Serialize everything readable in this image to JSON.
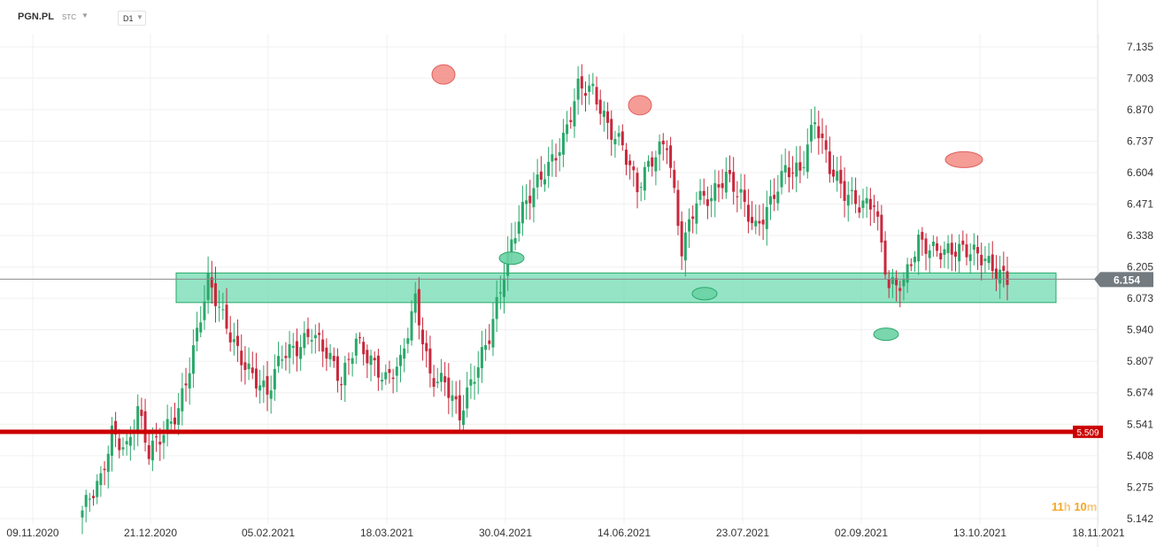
{
  "toolbar": {
    "symbol": "PGN.PL",
    "instrument_type": "STC",
    "interval": "D1"
  },
  "countdown": {
    "hours": "11",
    "hours_unit": "h",
    "minutes": "10",
    "minutes_unit": "m"
  },
  "colors": {
    "up": "#2aa86a",
    "down": "#c9283c",
    "zone": "#66d9ad",
    "support_line": "#cc0000",
    "price_tag": "#737a80",
    "peak_marker": "#f28b82",
    "trough_marker": "#6ad1a4"
  },
  "chart_data": {
    "type": "candlestick",
    "symbol": "PGN.PL",
    "interval": "D1",
    "y_ticks": [
      "7.135",
      "7.003",
      "6.870",
      "6.737",
      "6.604",
      "6.471",
      "6.338",
      "6.205",
      "6.073",
      "5.940",
      "5.807",
      "5.674",
      "5.541",
      "5.408",
      "5.275",
      "5.142"
    ],
    "x_ticks": [
      "09.11.2020",
      "21.12.2020",
      "05.02.2021",
      "18.03.2021",
      "30.04.2021",
      "14.06.2021",
      "23.07.2021",
      "02.09.2021",
      "13.10.2021",
      "18.11.2021"
    ],
    "ylim": [
      5.142,
      7.135
    ],
    "grid": true,
    "current_price": {
      "value": 6.154,
      "label": "6.154"
    },
    "support_line": {
      "value": 5.509,
      "label": "5.509"
    },
    "support_zone": {
      "from": 6.055,
      "to": 6.18,
      "start_date": "21.12.2020",
      "end_date": "15.11.2021"
    },
    "peaks": [
      {
        "date": "12.04.2021",
        "price": 7.0
      },
      {
        "date": "18.06.2021",
        "price": 6.87
      },
      {
        "date": "27.09.2021",
        "price": 6.64
      }
    ],
    "troughs": [
      {
        "date": "03.05.2021",
        "price": 6.25
      },
      {
        "date": "26.07.2021",
        "price": 6.1
      },
      {
        "date": "07.09.2021",
        "price": 5.94
      }
    ],
    "candle_count": 251,
    "close_anchors": [
      {
        "i": 0,
        "c": 5.16
      },
      {
        "i": 5,
        "c": 5.3
      },
      {
        "i": 8,
        "c": 5.52
      },
      {
        "i": 12,
        "c": 5.45
      },
      {
        "i": 15,
        "c": 5.6
      },
      {
        "i": 18,
        "c": 5.4
      },
      {
        "i": 22,
        "c": 5.5
      },
      {
        "i": 26,
        "c": 5.62
      },
      {
        "i": 30,
        "c": 5.86
      },
      {
        "i": 34,
        "c": 6.13
      },
      {
        "i": 38,
        "c": 5.98
      },
      {
        "i": 42,
        "c": 5.86
      },
      {
        "i": 46,
        "c": 5.76
      },
      {
        "i": 50,
        "c": 5.66
      },
      {
        "i": 54,
        "c": 5.82
      },
      {
        "i": 58,
        "c": 5.87
      },
      {
        "i": 62,
        "c": 5.95
      },
      {
        "i": 66,
        "c": 5.84
      },
      {
        "i": 70,
        "c": 5.7
      },
      {
        "i": 74,
        "c": 5.9
      },
      {
        "i": 78,
        "c": 5.83
      },
      {
        "i": 82,
        "c": 5.73
      },
      {
        "i": 86,
        "c": 5.78
      },
      {
        "i": 90,
        "c": 6.06
      },
      {
        "i": 94,
        "c": 5.76
      },
      {
        "i": 98,
        "c": 5.73
      },
      {
        "i": 102,
        "c": 5.56
      },
      {
        "i": 106,
        "c": 5.74
      },
      {
        "i": 110,
        "c": 5.93
      },
      {
        "i": 114,
        "c": 6.2
      },
      {
        "i": 118,
        "c": 6.4
      },
      {
        "i": 122,
        "c": 6.52
      },
      {
        "i": 126,
        "c": 6.64
      },
      {
        "i": 130,
        "c": 6.76
      },
      {
        "i": 134,
        "c": 6.96
      },
      {
        "i": 138,
        "c": 6.93
      },
      {
        "i": 142,
        "c": 6.8
      },
      {
        "i": 146,
        "c": 6.74
      },
      {
        "i": 150,
        "c": 6.54
      },
      {
        "i": 154,
        "c": 6.64
      },
      {
        "i": 158,
        "c": 6.73
      },
      {
        "i": 162,
        "c": 6.3
      },
      {
        "i": 166,
        "c": 6.5
      },
      {
        "i": 170,
        "c": 6.48
      },
      {
        "i": 174,
        "c": 6.58
      },
      {
        "i": 178,
        "c": 6.52
      },
      {
        "i": 182,
        "c": 6.38
      },
      {
        "i": 186,
        "c": 6.46
      },
      {
        "i": 190,
        "c": 6.6
      },
      {
        "i": 194,
        "c": 6.62
      },
      {
        "i": 198,
        "c": 6.85
      },
      {
        "i": 202,
        "c": 6.62
      },
      {
        "i": 206,
        "c": 6.5
      },
      {
        "i": 210,
        "c": 6.47
      },
      {
        "i": 214,
        "c": 6.5
      },
      {
        "i": 218,
        "c": 6.12
      },
      {
        "i": 222,
        "c": 6.12
      },
      {
        "i": 226,
        "c": 6.31
      },
      {
        "i": 232,
        "c": 6.29
      },
      {
        "i": 238,
        "c": 6.26
      },
      {
        "i": 244,
        "c": 6.24
      },
      {
        "i": 250,
        "c": 6.17
      }
    ]
  }
}
